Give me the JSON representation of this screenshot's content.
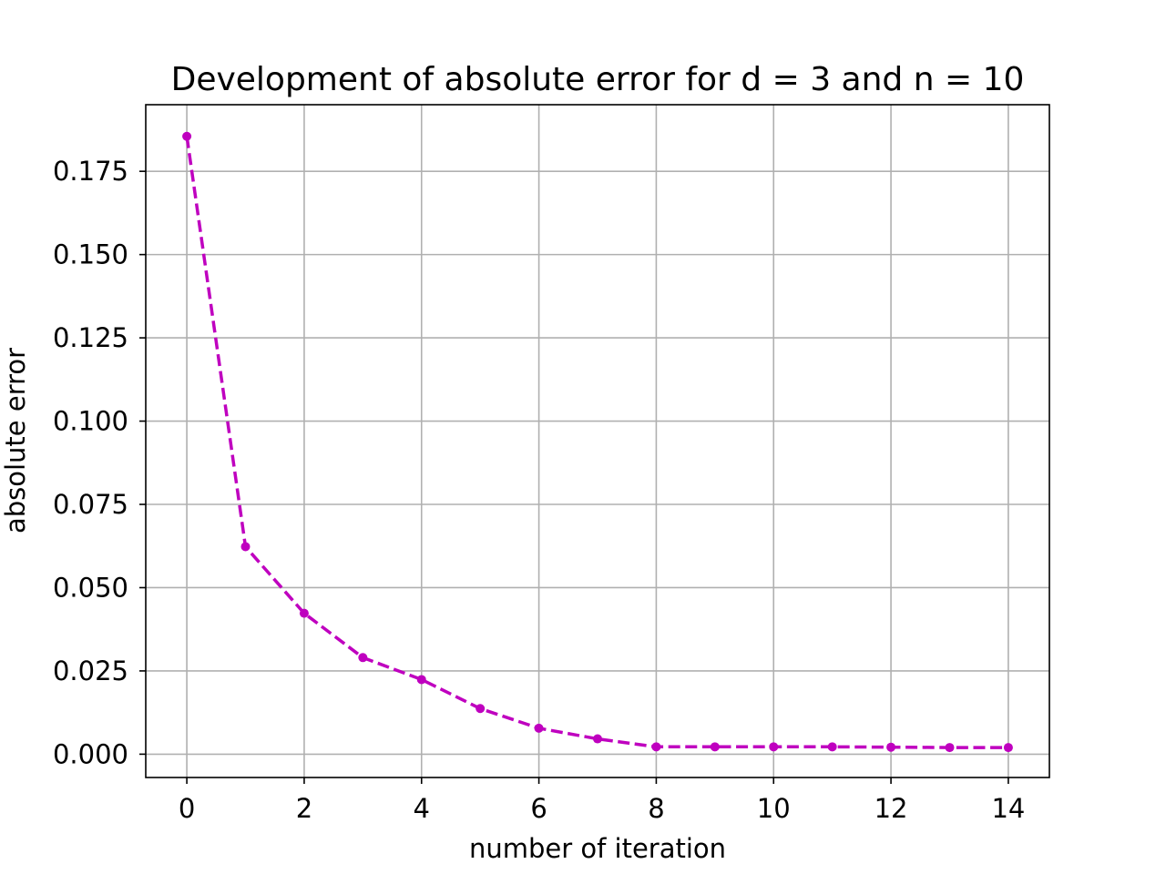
{
  "chart_data": {
    "type": "line",
    "title": "Development of absolute error for d = 3 and n = 10",
    "xlabel": "number of iteration",
    "ylabel": "absolute error",
    "xlim": [
      -0.7,
      14.7
    ],
    "ylim": [
      -0.007,
      0.195
    ],
    "xticks": [
      0,
      2,
      4,
      6,
      8,
      10,
      12,
      14
    ],
    "xtick_labels": [
      "0",
      "2",
      "4",
      "6",
      "8",
      "10",
      "12",
      "14"
    ],
    "yticks": [
      0.0,
      0.025,
      0.05,
      0.075,
      0.1,
      0.125,
      0.15,
      0.175
    ],
    "ytick_labels": [
      "0.000",
      "0.025",
      "0.050",
      "0.075",
      "0.100",
      "0.125",
      "0.150",
      "0.175"
    ],
    "grid": true,
    "series": [
      {
        "x": [
          0,
          1,
          2,
          3,
          4,
          5,
          6,
          7,
          8,
          9,
          10,
          11,
          12,
          13,
          14
        ],
        "y": [
          0.1855,
          0.0623,
          0.0423,
          0.029,
          0.0224,
          0.0137,
          0.0078,
          0.0046,
          0.0022,
          0.0022,
          0.0022,
          0.0022,
          0.0021,
          0.002,
          0.002
        ],
        "color": "#bf00bf",
        "line_style": "dashed",
        "marker": "dot"
      }
    ]
  }
}
